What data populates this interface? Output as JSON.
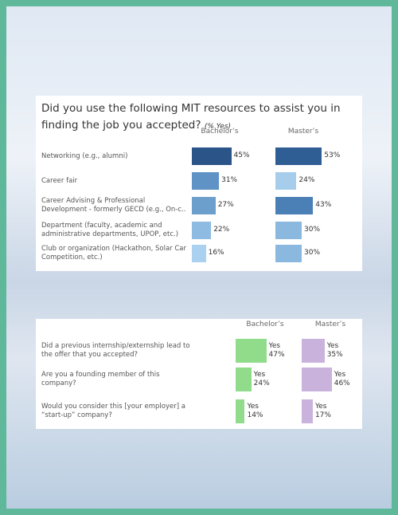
{
  "chart_data": [
    {
      "type": "bar",
      "orientation": "horizontal",
      "title": "Did you use the following MIT resources to assist you in finding the job you accepted?",
      "subtitle": "(% Yes)",
      "categories": [
        "Networking (e.g., alumni)",
        "Career fair",
        "Career Advising & Professional\nDevelopment - formerly GECD (e.g., On-c..",
        "Department (faculty, academic and\nadministrative departments, UPOP, etc.)",
        "Club or organization (Hackathon, Solar Car\nCompetition, etc.)"
      ],
      "xlim": [
        0,
        100
      ],
      "series": [
        {
          "name": "Bachelor’s",
          "colors": [
            "#2b5588",
            "#5f93c6",
            "#6d9fcd",
            "#8ebbe1",
            "#aad1ef"
          ],
          "values": [
            45,
            31,
            27,
            22,
            16
          ],
          "value_labels": [
            "45%",
            "31%",
            "27%",
            "22%",
            "16%"
          ]
        },
        {
          "name": "Master’s",
          "colors": [
            "#2f5e95",
            "#a6cdeb",
            "#4b80b6",
            "#8bb8df",
            "#8bb8df"
          ],
          "values": [
            53,
            24,
            43,
            30,
            30
          ],
          "value_labels": [
            "53%",
            "24%",
            "43%",
            "30%",
            "30%"
          ]
        }
      ]
    },
    {
      "type": "bar",
      "orientation": "horizontal",
      "categories": [
        "Did a previous internship/externship lead to\nthe offer that you accepted?",
        "Are you a founding member of this company?",
        "Would you consider this [your employer] a\n“start-up” company?"
      ],
      "answer": "Yes",
      "xlim": [
        0,
        100
      ],
      "series": [
        {
          "name": "Bachelor’s",
          "color": "#90dc8b",
          "values": [
            47,
            24,
            14
          ],
          "value_labels": [
            "47%",
            "24%",
            "14%"
          ]
        },
        {
          "name": "Master’s",
          "color": "#c9b3dd",
          "values": [
            35,
            46,
            17
          ],
          "value_labels": [
            "35%",
            "46%",
            "17%"
          ]
        }
      ]
    }
  ]
}
